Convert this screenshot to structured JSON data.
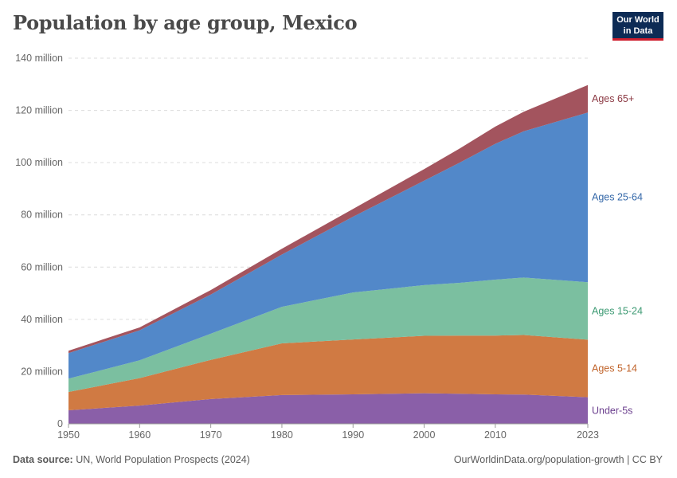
{
  "title": "Population by age group, Mexico",
  "logo": {
    "line1": "Our World",
    "line2": "in Data"
  },
  "footer": {
    "source_label": "Data source:",
    "source_text": "UN, World Population Prospects (2024)",
    "link": "OurWorldinData.org/population-growth | CC BY"
  },
  "chart_data": {
    "type": "area",
    "stacked": true,
    "x": [
      1950,
      1960,
      1970,
      1980,
      1990,
      2000,
      2005,
      2010,
      2014,
      2023
    ],
    "xticks": [
      1950,
      1960,
      1970,
      1980,
      1990,
      2000,
      2010,
      2023
    ],
    "xlim": [
      1950,
      2023
    ],
    "ylim": [
      0,
      140000000
    ],
    "yticks": [
      {
        "v": 0,
        "label": "0"
      },
      {
        "v": 20000000,
        "label": "20 million"
      },
      {
        "v": 40000000,
        "label": "40 million"
      },
      {
        "v": 60000000,
        "label": "60 million"
      },
      {
        "v": 80000000,
        "label": "80 million"
      },
      {
        "v": 100000000,
        "label": "100 million"
      },
      {
        "v": 120000000,
        "label": "120 million"
      },
      {
        "v": 140000000,
        "label": "140 million"
      }
    ],
    "grid": true,
    "legend": "right-inline",
    "series": [
      {
        "name": "Under-5s",
        "color": "#8a5fa8",
        "label_color": "#6b3f8e",
        "values": [
          5200000,
          7000000,
          9500000,
          11000000,
          11300000,
          11700000,
          11500000,
          11300000,
          11200000,
          10200000
        ]
      },
      {
        "name": "Ages 5-14",
        "color": "#d07a43",
        "label_color": "#c0632a",
        "values": [
          7000000,
          10500000,
          15000000,
          19800000,
          21000000,
          22000000,
          22300000,
          22500000,
          22800000,
          22000000
        ]
      },
      {
        "name": "Ages 15-24",
        "color": "#7bbfa0",
        "label_color": "#3c9a73",
        "values": [
          5100000,
          6800000,
          10000000,
          14000000,
          18000000,
          19400000,
          20200000,
          21400000,
          22000000,
          22000000
        ]
      },
      {
        "name": "Ages 25-64",
        "color": "#5288c9",
        "label_color": "#3367a8",
        "values": [
          9800000,
          11500000,
          15000000,
          20000000,
          29000000,
          40000000,
          46000000,
          52000000,
          56000000,
          65000000
        ]
      },
      {
        "name": "Ages 65+",
        "color": "#a3545e",
        "label_color": "#8c3a44",
        "values": [
          900000,
          1100000,
          1700000,
          2200000,
          3000000,
          4400000,
          5400000,
          6600000,
          7500000,
          10500000
        ]
      }
    ]
  }
}
